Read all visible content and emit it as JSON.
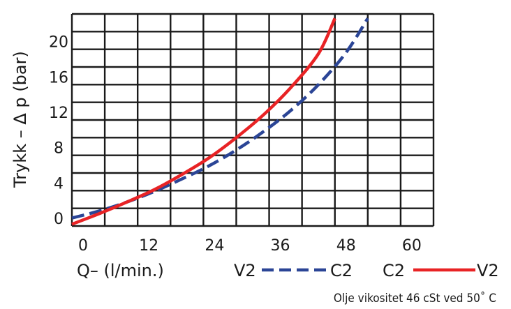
{
  "chart_data": {
    "type": "line",
    "xlabel": "Q–  (l/min.)",
    "ylabel": "Trykk  –   Δ p  (bar)",
    "xlim": [
      0,
      66
    ],
    "ylim": [
      0,
      24
    ],
    "x_ticks": [
      "0",
      "12",
      "24",
      "36",
      "48",
      "60"
    ],
    "y_ticks": [
      "0",
      "4",
      "8",
      "12",
      "16",
      "20"
    ],
    "grid": true,
    "series": [
      {
        "name": "V2→C2",
        "color": "#2b4596",
        "style": "dashed",
        "x": [
          0,
          5,
          10,
          15,
          20,
          25,
          30,
          35,
          40,
          45,
          50,
          54
        ],
        "y": [
          0.9,
          1.7,
          2.7,
          3.9,
          5.3,
          6.8,
          8.6,
          10.7,
          13.1,
          16.0,
          19.6,
          23.5
        ]
      },
      {
        "name": "C2→V2",
        "color": "#e82325",
        "style": "solid",
        "x": [
          0,
          5,
          10,
          15,
          20,
          25,
          30,
          35,
          40,
          45,
          48
        ],
        "y": [
          0.2,
          1.4,
          2.7,
          4.1,
          5.8,
          7.7,
          10.0,
          12.6,
          15.7,
          19.5,
          23.5
        ]
      }
    ],
    "legend": {
      "placement": "bottom",
      "v2_label": "V2",
      "c2_label": "C2",
      "c2b_label": "C2",
      "v2b_label": "V2"
    },
    "annotation": "Olje  vikositet  46  cSt  ved  50˚  C"
  }
}
